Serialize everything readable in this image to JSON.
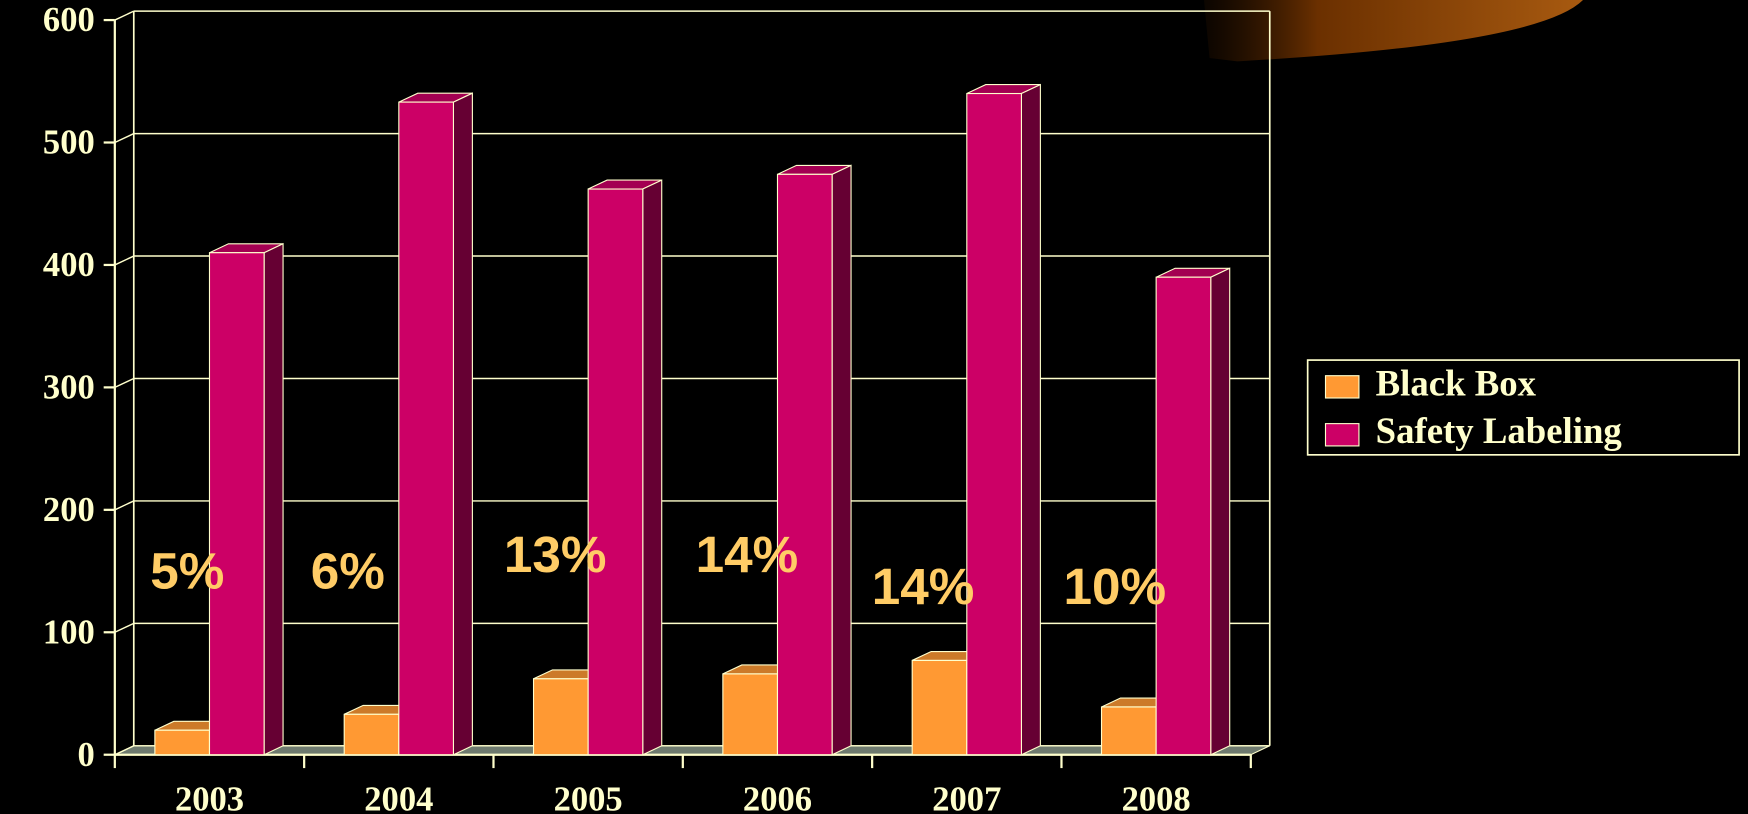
{
  "chart_data": {
    "type": "bar",
    "categories": [
      "2003",
      "2004",
      "2005",
      "2006",
      "2007",
      "2008"
    ],
    "series": [
      {
        "name": "Black Box",
        "color": "#ff9933",
        "values": [
          20,
          33,
          62,
          66,
          77,
          39
        ]
      },
      {
        "name": "Safety Labeling",
        "color": "#cc0066",
        "values": [
          410,
          533,
          462,
          474,
          540,
          390
        ]
      }
    ],
    "annotations": [
      "5%",
      "6%",
      "13%",
      "14%",
      "14%",
      "10%"
    ],
    "ylim": [
      0,
      600
    ],
    "yticks": [
      0,
      100,
      200,
      300,
      400,
      500,
      600
    ],
    "grid": true,
    "legend": "right"
  }
}
